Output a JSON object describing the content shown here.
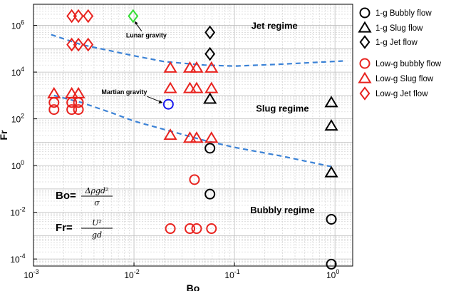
{
  "chart_data": {
    "type": "scatter",
    "xlabel": "Bo",
    "ylabel": "Fr",
    "xscale": "log",
    "yscale": "log",
    "xlim": [
      0.001,
      1.5
    ],
    "ylim": [
      5e-05,
      8000000
    ],
    "grid": true,
    "x_ticks": [
      {
        "value": 0.001,
        "base": "10",
        "exp": "-3"
      },
      {
        "value": 0.01,
        "base": "10",
        "exp": "-2"
      },
      {
        "value": 0.1,
        "base": "10",
        "exp": "-1"
      },
      {
        "value": 1,
        "base": "10",
        "exp": "0"
      }
    ],
    "y_ticks": [
      {
        "value": 0.0001,
        "base": "10",
        "exp": "-4"
      },
      {
        "value": 0.01,
        "base": "10",
        "exp": "-2"
      },
      {
        "value": 1,
        "base": "10",
        "exp": "0"
      },
      {
        "value": 100,
        "base": "10",
        "exp": "2"
      },
      {
        "value": 10000,
        "base": "10",
        "exp": "4"
      },
      {
        "value": 1000000,
        "base": "10",
        "exp": "6"
      }
    ],
    "series": [
      {
        "name": "1-g Bubbly flow",
        "marker": "circle",
        "color": "#000000",
        "points": [
          [
            0.057,
            5.5
          ],
          [
            0.057,
            0.06
          ],
          [
            0.92,
            0.005
          ],
          [
            0.92,
            6e-05
          ]
        ]
      },
      {
        "name": "1-g Slug flow",
        "marker": "triangle",
        "color": "#000000",
        "points": [
          [
            0.057,
            700
          ],
          [
            0.92,
            500
          ],
          [
            0.92,
            50
          ],
          [
            0.92,
            0.5
          ]
        ]
      },
      {
        "name": "1-g Jet flow",
        "marker": "diamond",
        "color": "#000000",
        "points": [
          [
            0.057,
            500000
          ],
          [
            0.057,
            60000
          ]
        ]
      },
      {
        "name": "Low-g bubbly flow",
        "marker": "circle",
        "color": "#e8231f",
        "points": [
          [
            0.0016,
            500
          ],
          [
            0.0016,
            250
          ],
          [
            0.0024,
            500
          ],
          [
            0.0024,
            250
          ],
          [
            0.0028,
            500
          ],
          [
            0.0028,
            250
          ],
          [
            0.04,
            0.25
          ],
          [
            0.023,
            0.002
          ],
          [
            0.036,
            0.002
          ],
          [
            0.042,
            0.002
          ],
          [
            0.059,
            0.002
          ]
        ]
      },
      {
        "name": "Low-g Slug flow",
        "marker": "triangle",
        "color": "#e8231f",
        "points": [
          [
            0.0016,
            1200
          ],
          [
            0.0024,
            1200
          ],
          [
            0.0028,
            1200
          ],
          [
            0.023,
            15000
          ],
          [
            0.036,
            15000
          ],
          [
            0.042,
            15000
          ],
          [
            0.059,
            15000
          ],
          [
            0.023,
            2000
          ],
          [
            0.036,
            2000
          ],
          [
            0.042,
            2000
          ],
          [
            0.059,
            2000
          ],
          [
            0.023,
            20
          ],
          [
            0.036,
            15
          ],
          [
            0.042,
            15
          ],
          [
            0.059,
            15
          ]
        ]
      },
      {
        "name": "Low-g Jet flow",
        "marker": "diamond",
        "color": "#e8231f",
        "points": [
          [
            0.0024,
            2500000
          ],
          [
            0.0028,
            2500000
          ],
          [
            0.0035,
            2500000
          ],
          [
            0.0024,
            150000
          ],
          [
            0.0028,
            150000
          ],
          [
            0.0035,
            150000
          ]
        ]
      }
    ],
    "special_points": [
      {
        "label": "Lunar gravity",
        "x": 0.0098,
        "y": 2500000,
        "marker": "diamond",
        "color": "#33dd33"
      },
      {
        "label": "Martian gravity",
        "x": 0.022,
        "y": 420,
        "marker": "circle",
        "color": "#1a1aee"
      }
    ],
    "boundaries": [
      {
        "color": "#3b82d6",
        "points": [
          [
            0.0015,
            400000
          ],
          [
            0.003,
            150000
          ],
          [
            0.01,
            50000
          ],
          [
            0.02,
            28000
          ],
          [
            0.05,
            20000
          ],
          [
            0.1,
            18000
          ],
          [
            0.3,
            22000
          ],
          [
            1.2,
            30000
          ]
        ]
      },
      {
        "color": "#3b82d6",
        "points": [
          [
            0.0016,
            1000
          ],
          [
            0.003,
            500
          ],
          [
            0.006,
            180
          ],
          [
            0.01,
            80
          ],
          [
            0.02,
            35
          ],
          [
            0.05,
            12
          ],
          [
            0.1,
            6
          ],
          [
            0.3,
            2.5
          ],
          [
            0.92,
            0.9
          ]
        ]
      }
    ],
    "regions": [
      {
        "label": "Jet regime",
        "x": 0.25,
        "y": 700000
      },
      {
        "label": "Slug regime",
        "x": 0.3,
        "y": 200
      },
      {
        "label": "Bubbly regime",
        "x": 0.3,
        "y": 0.009
      }
    ],
    "formulas": {
      "bo_lhs": "Bo=",
      "bo_num": "Δρgd²",
      "bo_den": "σ",
      "fr_lhs": "Fr=",
      "fr_num": "U²",
      "fr_den": "gd"
    },
    "legend_position": "right"
  }
}
